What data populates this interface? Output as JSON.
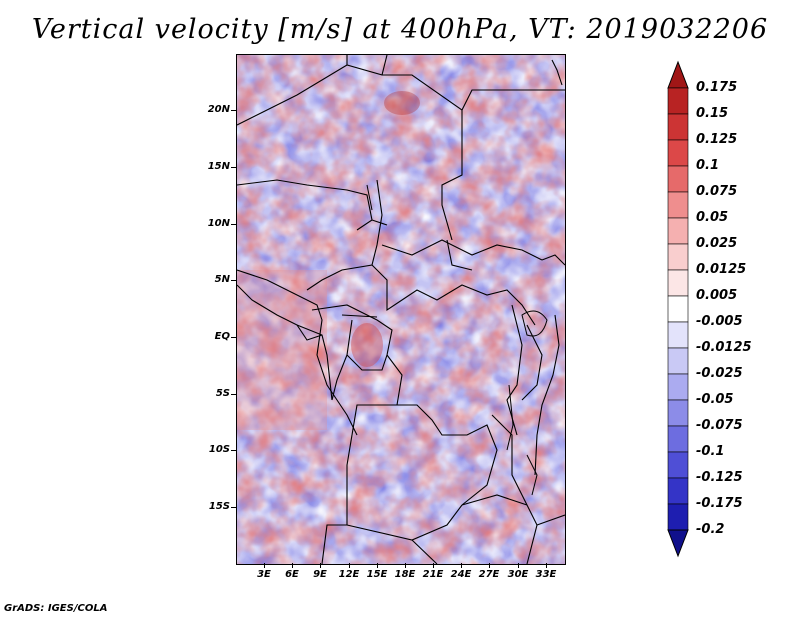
{
  "title": "Vertical velocity [m/s] at 400hPa, VT: 2019032206",
  "credit": "GrADS: IGES/COLA",
  "lat_labels": [
    "20N",
    "15N",
    "10N",
    "5N",
    "EQ",
    "5S",
    "10S",
    "15S"
  ],
  "lon_labels": [
    "3E",
    "6E",
    "9E",
    "12E",
    "15E",
    "18E",
    "21E",
    "24E",
    "27E",
    "30E",
    "33E"
  ],
  "colorbar": {
    "levels": [
      "0.175",
      "0.15",
      "0.125",
      "0.1",
      "0.075",
      "0.05",
      "0.025",
      "0.0125",
      "0.005",
      "-0.005",
      "-0.0125",
      "-0.025",
      "-0.05",
      "-0.075",
      "-0.1",
      "-0.125",
      "-0.175",
      "-0.2"
    ],
    "colors": [
      "#a01616",
      "#b82323",
      "#cc3434",
      "#dc4848",
      "#e66a6a",
      "#ef8e8e",
      "#f5b0b0",
      "#f9cece",
      "#fce6e6",
      "#ffffff",
      "#e3e3fb",
      "#c9c9f5",
      "#ababf0",
      "#8c8ce8",
      "#6d6de0",
      "#4f4fd6",
      "#3434c7",
      "#1e1eb0",
      "#10108c"
    ]
  },
  "colors": {
    "background": "#ffffff",
    "border": "#000000",
    "neutral": "#ffffff",
    "ascent_max": "#a01616",
    "descent_max": "#10108c"
  }
}
